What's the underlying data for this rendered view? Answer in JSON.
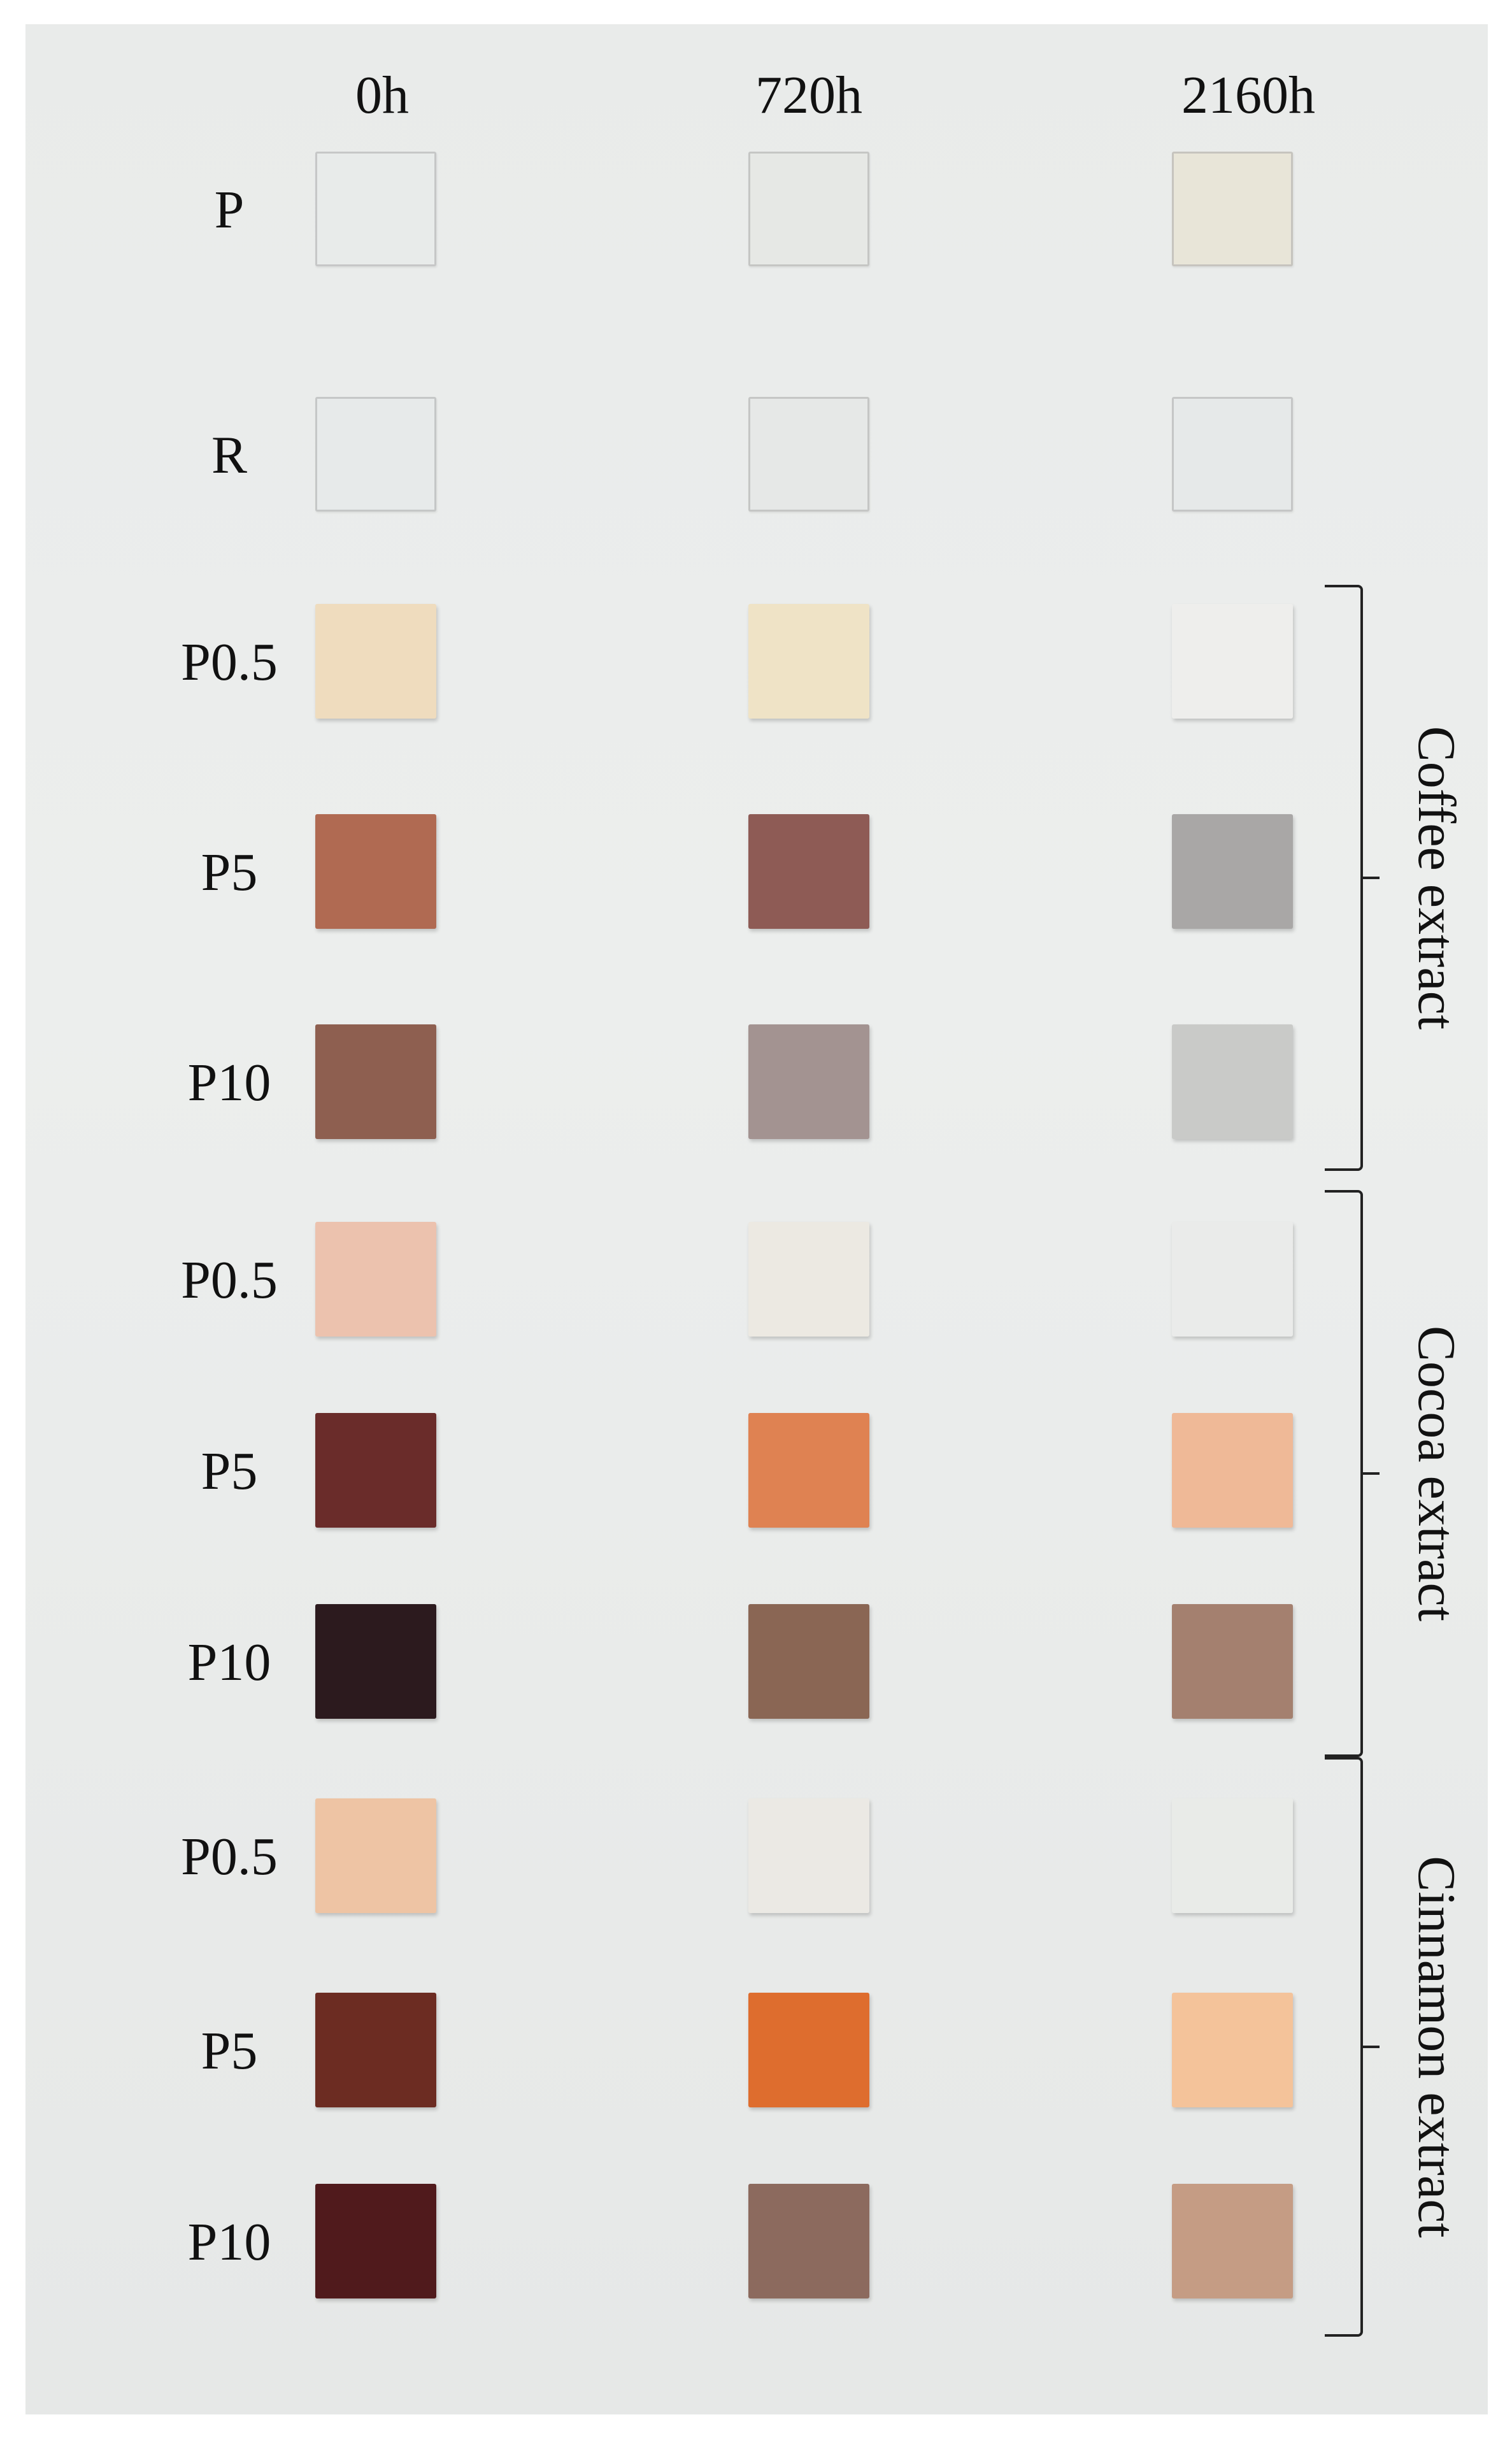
{
  "columns": [
    "0h",
    "720h",
    "2160h"
  ],
  "rows": [
    {
      "label": "P",
      "colors": [
        "#e8ebea",
        "#e6e8e5",
        "#e8e5d8"
      ],
      "clear": [
        true,
        true,
        true
      ]
    },
    {
      "label": "R",
      "colors": [
        "#e7eaea",
        "#e6e8e7",
        "#e6e9e9"
      ],
      "clear": [
        true,
        true,
        true
      ]
    },
    {
      "label": "P0.5",
      "colors": [
        "#efdcbe",
        "#efe3c6",
        "#eeeeec"
      ],
      "clear": [
        false,
        false,
        false
      ]
    },
    {
      "label": "P5",
      "colors": [
        "#b06a52",
        "#8e5b55",
        "#a9a7a6"
      ],
      "clear": [
        false,
        false,
        false
      ]
    },
    {
      "label": "P10",
      "colors": [
        "#8e5f50",
        "#a39391",
        "#c9cac8"
      ],
      "clear": [
        false,
        false,
        false
      ]
    },
    {
      "label": "P0.5",
      "colors": [
        "#ecc2ae",
        "#ece9e2",
        "#eaebea"
      ],
      "clear": [
        false,
        false,
        false
      ]
    },
    {
      "label": "P5",
      "colors": [
        "#6a2c2a",
        "#df8252",
        "#efb997"
      ],
      "clear": [
        false,
        false,
        false
      ]
    },
    {
      "label": "P10",
      "colors": [
        "#2c1a1e",
        "#8a6654",
        "#a4806f"
      ],
      "clear": [
        false,
        false,
        false
      ]
    },
    {
      "label": "P0.5",
      "colors": [
        "#eec4a4",
        "#ebe9e4",
        "#e9ebe8"
      ],
      "clear": [
        false,
        false,
        false
      ]
    },
    {
      "label": "P5",
      "colors": [
        "#6c2c22",
        "#de6d2e",
        "#f4c39a"
      ],
      "clear": [
        false,
        false,
        false
      ]
    },
    {
      "label": "P10",
      "colors": [
        "#501a1c",
        "#8c6a5e",
        "#c59c84"
      ],
      "clear": [
        false,
        false,
        false
      ]
    }
  ],
  "groups": [
    {
      "label": "Coffee extract",
      "first_row": 2,
      "last_row": 4
    },
    {
      "label": "Cocoa extract",
      "first_row": 5,
      "last_row": 7
    },
    {
      "label": "Cinnamon extract",
      "first_row": 8,
      "last_row": 10
    }
  ]
}
